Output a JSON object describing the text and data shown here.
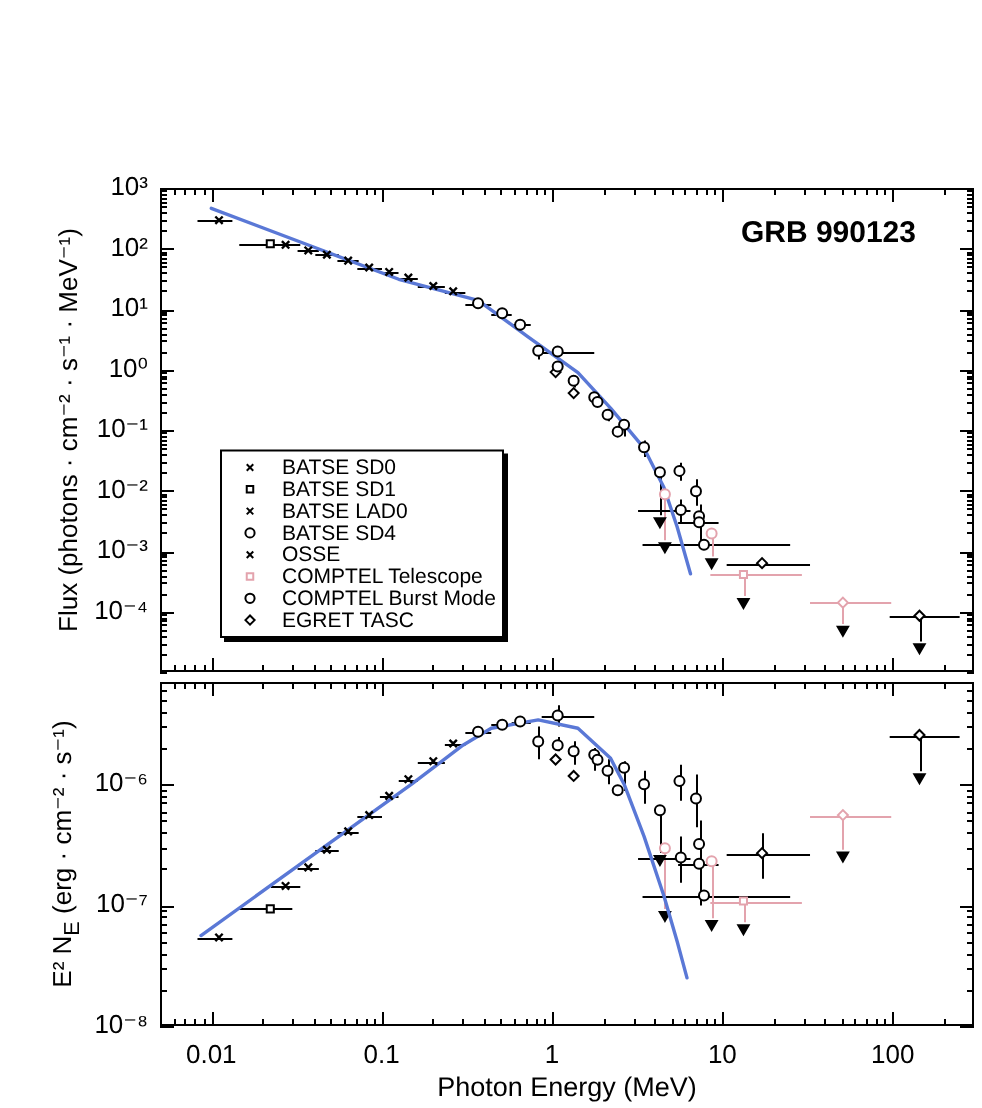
{
  "chart_data": [
    {
      "type": "scatter",
      "title": "GRB 990123",
      "ylabel": "Flux  (photons · cm⁻² · s⁻¹ · MeV⁻¹)",
      "log": "xy",
      "xlim": [
        0.005,
        300
      ],
      "ylim": [
        1e-05,
        1000
      ],
      "tick_labels": "y",
      "legend": "bottom left",
      "xticks": [
        {
          "value": 0.005,
          "label": null
        },
        {
          "value": 0.006,
          "label": null
        },
        {
          "value": 0.007,
          "label": null
        },
        {
          "value": 0.008,
          "label": null
        },
        {
          "value": 0.009,
          "label": null
        },
        0.01,
        {
          "value": 0.02,
          "label": null
        },
        {
          "value": 0.03,
          "label": null
        },
        {
          "value": 0.04,
          "label": null
        },
        {
          "value": 0.05,
          "label": null
        },
        {
          "value": 0.06,
          "label": null
        },
        {
          "value": 0.07,
          "label": null
        },
        {
          "value": 0.08,
          "label": null
        },
        {
          "value": 0.09,
          "label": null
        },
        0.1,
        {
          "value": 0.2,
          "label": null
        },
        {
          "value": 0.3,
          "label": null
        },
        {
          "value": 0.4,
          "label": null
        },
        {
          "value": 0.5,
          "label": null
        },
        {
          "value": 0.6,
          "label": null
        },
        {
          "value": 0.7,
          "label": null
        },
        {
          "value": 0.8,
          "label": null
        },
        {
          "value": 0.9,
          "label": null
        },
        1,
        {
          "value": 2,
          "label": null
        },
        {
          "value": 3,
          "label": null
        },
        {
          "value": 4,
          "label": null
        },
        {
          "value": 5,
          "label": null
        },
        {
          "value": 6,
          "label": null
        },
        {
          "value": 7,
          "label": null
        },
        {
          "value": 8,
          "label": null
        },
        {
          "value": 9,
          "label": null
        },
        10,
        {
          "value": 20,
          "label": null
        },
        {
          "value": 30,
          "label": null
        },
        {
          "value": 40,
          "label": null
        },
        {
          "value": 50,
          "label": null
        },
        {
          "value": 60,
          "label": null
        },
        {
          "value": 70,
          "label": null
        },
        {
          "value": 80,
          "label": null
        },
        {
          "value": 90,
          "label": null
        },
        100,
        {
          "value": 200,
          "label": null
        }
      ],
      "yticks": [
        {
          "value": 1e-05,
          "label": null
        },
        {
          "value": 2e-05,
          "label": null
        },
        {
          "value": 3e-05,
          "label": null
        },
        {
          "value": 4e-05,
          "label": null
        },
        {
          "value": 5e-05,
          "label": null
        },
        {
          "value": 6e-05,
          "label": null
        },
        {
          "value": 7e-05,
          "label": null
        },
        {
          "value": 8e-05,
          "label": null
        },
        {
          "value": 9e-05,
          "label": null
        },
        {
          "value": 0.0001,
          "label": "10⁻⁴"
        },
        {
          "value": 0.0002,
          "label": null
        },
        {
          "value": 0.0003,
          "label": null
        },
        {
          "value": 0.0004,
          "label": null
        },
        {
          "value": 0.0005,
          "label": null
        },
        {
          "value": 0.0006,
          "label": null
        },
        {
          "value": 0.0007,
          "label": null
        },
        {
          "value": 0.0008,
          "label": null
        },
        {
          "value": 0.0009,
          "label": null
        },
        {
          "value": 0.001,
          "label": "10⁻³"
        },
        {
          "value": 0.002,
          "label": null
        },
        {
          "value": 0.003,
          "label": null
        },
        {
          "value": 0.004,
          "label": null
        },
        {
          "value": 0.005,
          "label": null
        },
        {
          "value": 0.006,
          "label": null
        },
        {
          "value": 0.007,
          "label": null
        },
        {
          "value": 0.008,
          "label": null
        },
        {
          "value": 0.009,
          "label": null
        },
        {
          "value": 0.01,
          "label": "10⁻²"
        },
        {
          "value": 0.02,
          "label": null
        },
        {
          "value": 0.03,
          "label": null
        },
        {
          "value": 0.04,
          "label": null
        },
        {
          "value": 0.05,
          "label": null
        },
        {
          "value": 0.06,
          "label": null
        },
        {
          "value": 0.07,
          "label": null
        },
        {
          "value": 0.08,
          "label": null
        },
        {
          "value": 0.09,
          "label": null
        },
        {
          "value": 0.1,
          "label": "10⁻¹"
        },
        {
          "value": 0.2,
          "label": null
        },
        {
          "value": 0.3,
          "label": null
        },
        {
          "value": 0.4,
          "label": null
        },
        {
          "value": 0.5,
          "label": null
        },
        {
          "value": 0.6,
          "label": null
        },
        {
          "value": 0.7,
          "label": null
        },
        {
          "value": 0.8,
          "label": null
        },
        {
          "value": 0.9,
          "label": null
        },
        {
          "value": 1,
          "label": "10⁰"
        },
        {
          "value": 2,
          "label": null
        },
        {
          "value": 3,
          "label": null
        },
        {
          "value": 4,
          "label": null
        },
        {
          "value": 5,
          "label": null
        },
        {
          "value": 6,
          "label": null
        },
        {
          "value": 7,
          "label": null
        },
        {
          "value": 8,
          "label": null
        },
        {
          "value": 9,
          "label": null
        },
        {
          "value": 10,
          "label": "10¹"
        },
        {
          "value": 20,
          "label": null
        },
        {
          "value": 30,
          "label": null
        },
        {
          "value": 40,
          "label": null
        },
        {
          "value": 50,
          "label": null
        },
        {
          "value": 60,
          "label": null
        },
        {
          "value": 70,
          "label": null
        },
        {
          "value": 80,
          "label": null
        },
        {
          "value": 90,
          "label": null
        },
        {
          "value": 100,
          "label": "10²"
        },
        {
          "value": 200,
          "label": null
        },
        {
          "value": 300,
          "label": null
        },
        {
          "value": 400,
          "label": null
        },
        {
          "value": 500,
          "label": null
        },
        {
          "value": 600,
          "label": null
        },
        {
          "value": 700,
          "label": null
        },
        {
          "value": 800,
          "label": null
        },
        {
          "value": 900,
          "label": null
        },
        {
          "value": 1000,
          "label": "10³"
        }
      ],
      "series": [
        {
          "name": "BATSE SD0",
          "marker": "cross",
          "color": "#000000",
          "x": [
            0.0111
          ],
          "values": [
            294
          ],
          "xerrors": [
            [
              0.0083,
              0.0133
            ]
          ]
        },
        {
          "name": "BATSE SD1",
          "marker": "square",
          "color": "#000000",
          "x": [
            0.0222
          ],
          "values": [
            120
          ],
          "xerrors": [
            [
              0.0146,
              0.0299
            ]
          ]
        },
        {
          "name": "BATSE LAD0",
          "marker": "cross",
          "color": "#000000",
          "x": [
            0.0273,
            0.0371,
            0.0477,
            0.0636,
            0.0845,
            0.1107,
            0.1435,
            0.201,
            0.263
          ],
          "values": [
            115,
            93,
            79,
            63,
            48.5,
            41,
            33,
            24,
            19.6
          ],
          "xerrors": [
            [
              0.0224,
              0.0333
            ],
            [
              0.0321,
              0.0428
            ],
            [
              0.0408,
              0.056
            ],
            [
              0.055,
              0.0733
            ],
            [
              0.072,
              0.1005
            ],
            [
              0.0977,
              0.1256
            ],
            [
              0.126,
              0.163
            ],
            [
              0.163,
              0.235
            ],
            [
              0.235,
              0.31
            ]
          ]
        },
        {
          "name": "BATSE SD4",
          "marker": "circle",
          "color": "#000000",
          "x": [
            0.368,
            0.51,
            0.65,
            0.83,
            1.08,
            1.85,
            2.43,
            4.3,
            7.3,
            7.8
          ],
          "values": [
            12.5,
            8.5,
            5.5,
            2.04,
            1.98,
            0.29,
            0.094,
            0.02,
            0.003,
            0.00127
          ],
          "xerrors": [
            [
              0.31,
              0.44
            ],
            [
              0.44,
              0.58
            ],
            [
              0.58,
              0.75
            ],
            null,
            [
              0.87,
              1.77
            ],
            null,
            null,
            null,
            [
              5.5,
              9.5
            ],
            [
              3.4,
              25
            ]
          ],
          "errors": [
            null,
            null,
            null,
            [
              1.46,
              2.72
            ],
            [
              1.61,
              2.4
            ],
            null,
            null,
            [
              0.0039,
              0.02
            ],
            [
              0.00116,
              0.00586
            ],
            null
          ]
        },
        {
          "name": "OSSE",
          "marker": "cross",
          "color": "#000000"
        },
        {
          "name": "COMPTEL Telescope",
          "marker": "square",
          "color": "#e3a3ad",
          "x": [
            13.3
          ],
          "values": [
            0.00041
          ],
          "xerrors": [
            [
              8.5,
              29.3
            ]
          ],
          "errors": [
            [
              0.00018,
              0.00041
            ]
          ]
        },
        {
          "name": "COMPTEL Burst Mode",
          "marker": "circle",
          "color": "#000000",
          "x": [
            1.08,
            1.34,
            1.77,
            2.12,
            2.65,
            3.47,
            4.6,
            5.6,
            5.7,
            7.0,
            7.3,
            8.65
          ],
          "values": [
            1.12,
            0.65,
            0.349,
            0.179,
            0.122,
            0.0518,
            0.0087,
            0.0211,
            0.00476,
            0.00968,
            0.00375,
            0.00195
          ],
          "xerrors": [
            null,
            null,
            null,
            null,
            null,
            null,
            null,
            null,
            [
              3.2,
              6.5
            ],
            null,
            null,
            null
          ],
          "errors": [
            [
              1.0,
              1.32
            ],
            [
              0.504,
              0.786
            ],
            [
              0.257,
              0.397
            ],
            [
              0.139,
              0.224
            ],
            [
              0.078,
              0.138
            ],
            [
              0.0358,
              0.0669
            ],
            [
              0.0015,
              0.0087
            ],
            [
              0.01453,
              0.02886
            ],
            [
              0.00294,
              0.00711
            ],
            [
              0.0056,
              0.01529
            ],
            [
              0.00199,
              0.00551
            ],
            [
              0.00081,
              0.00195
            ]
          ],
          "colors": [
            "#000000",
            "#000000",
            "#000000",
            "#000000",
            "#000000",
            "#000000",
            "#e3a3ad",
            "#000000",
            "#000000",
            "#000000",
            "#000000",
            "#e3a3ad"
          ]
        },
        {
          "name": "EGRET TASC",
          "marker": "diamond",
          "color": "#000000",
          "x": [
            1.05,
            1.34,
            17.1,
            51,
            143.6
          ],
          "values": [
            0.906,
            0.407,
            0.00063,
            0.00014,
            8.5e-05
          ],
          "xerrors": [
            null,
            null,
            [
              10.6,
              32.7
            ],
            [
              32.7,
              98
            ],
            [
              96,
              247
            ]
          ],
          "errors": [
            null,
            null,
            null,
            [
              6.2e-05,
              0.00014
            ],
            [
              3.2e-05,
              8.5e-05
            ]
          ],
          "colors": [
            "#000000",
            "#000000",
            "#000000",
            "#e3a3ad",
            "#000000"
          ]
        },
        {
          "type": "line",
          "marker": "none",
          "color": "#5a78d6",
          "x": [
            0.01,
            0.0428,
            0.126,
            0.368,
            0.72,
            1.42,
            2.22,
            3.47,
            4.54,
            5.43,
            6.5
          ],
          "values": [
            461,
            98,
            31,
            13.9,
            3.5,
            0.89,
            0.225,
            0.05,
            0.0112,
            0.0025,
            0.00042
          ]
        },
        {
          "marker": "triangle",
          "color": "#000000",
          "x": [
            4.3,
            4.6,
            8.65,
            13.3,
            51,
            143.6
          ],
          "values": [
            0.0031,
            0.0012,
            0.00065,
            0.000144,
            5e-05,
            2.56e-05
          ]
        }
      ]
    },
    {
      "type": "scatter",
      "xlabel": "Photon Energy (MeV)",
      "ylabel": "E² N$_{E}$  (erg · cm⁻² · s⁻¹)",
      "log": "xy",
      "xlim": [
        0.005,
        300
      ],
      "ylim": [
        1e-08,
        7e-06
      ],
      "xticks": [
        {
          "value": 0.005,
          "label": null
        },
        {
          "value": 0.006,
          "label": null
        },
        {
          "value": 0.007,
          "label": null
        },
        {
          "value": 0.008,
          "label": null
        },
        {
          "value": 0.009,
          "label": null
        },
        0.01,
        {
          "value": 0.02,
          "label": null
        },
        {
          "value": 0.03,
          "label": null
        },
        {
          "value": 0.04,
          "label": null
        },
        {
          "value": 0.05,
          "label": null
        },
        {
          "value": 0.06,
          "label": null
        },
        {
          "value": 0.07,
          "label": null
        },
        {
          "value": 0.08,
          "label": null
        },
        {
          "value": 0.09,
          "label": null
        },
        0.1,
        {
          "value": 0.2,
          "label": null
        },
        {
          "value": 0.3,
          "label": null
        },
        {
          "value": 0.4,
          "label": null
        },
        {
          "value": 0.5,
          "label": null
        },
        {
          "value": 0.6,
          "label": null
        },
        {
          "value": 0.7,
          "label": null
        },
        {
          "value": 0.8,
          "label": null
        },
        {
          "value": 0.9,
          "label": null
        },
        1,
        {
          "value": 2,
          "label": null
        },
        {
          "value": 3,
          "label": null
        },
        {
          "value": 4,
          "label": null
        },
        {
          "value": 5,
          "label": null
        },
        {
          "value": 6,
          "label": null
        },
        {
          "value": 7,
          "label": null
        },
        {
          "value": 8,
          "label": null
        },
        {
          "value": 9,
          "label": null
        },
        10,
        {
          "value": 20,
          "label": null
        },
        {
          "value": 30,
          "label": null
        },
        {
          "value": 40,
          "label": null
        },
        {
          "value": 50,
          "label": null
        },
        {
          "value": 60,
          "label": null
        },
        {
          "value": 70,
          "label": null
        },
        {
          "value": 80,
          "label": null
        },
        {
          "value": 90,
          "label": null
        },
        100,
        {
          "value": 200,
          "label": null
        }
      ],
      "yticks": [
        {
          "value": 1e-08,
          "label": "10⁻⁸"
        },
        {
          "value": 2e-08,
          "label": null
        },
        {
          "value": 3e-08,
          "label": null
        },
        {
          "value": 4e-08,
          "label": null
        },
        {
          "value": 5e-08,
          "label": null
        },
        {
          "value": 6e-08,
          "label": null
        },
        {
          "value": 7e-08,
          "label": null
        },
        {
          "value": 8e-08,
          "label": null
        },
        {
          "value": 9e-08,
          "label": null
        },
        {
          "value": 1e-07,
          "label": "10⁻⁷"
        },
        {
          "value": 2e-07,
          "label": null
        },
        {
          "value": 3e-07,
          "label": null
        },
        {
          "value": 4e-07,
          "label": null
        },
        {
          "value": 5e-07,
          "label": null
        },
        {
          "value": 6e-07,
          "label": null
        },
        {
          "value": 7e-07,
          "label": null
        },
        {
          "value": 8e-07,
          "label": null
        },
        {
          "value": 9e-07,
          "label": null
        },
        {
          "value": 1e-06,
          "label": "10⁻⁶"
        },
        {
          "value": 2e-06,
          "label": null
        },
        {
          "value": 3e-06,
          "label": null
        },
        {
          "value": 4e-06,
          "label": null
        },
        {
          "value": 5e-06,
          "label": null
        },
        {
          "value": 6e-06,
          "label": null
        }
      ],
      "series": [
        {
          "marker": "cross",
          "color": "#000000",
          "x": [
            0.0111
          ],
          "values": [
            5.4e-08
          ],
          "xerrors": [
            [
              0.0083,
              0.0133
            ]
          ]
        },
        {
          "marker": "square",
          "color": "#000000",
          "x": [
            0.0222
          ],
          "values": [
            9.3e-08
          ],
          "xerrors": [
            [
              0.0146,
              0.0299
            ]
          ]
        },
        {
          "marker": "cross",
          "color": "#000000",
          "x": [
            0.0273,
            0.0371,
            0.0477,
            0.0636,
            0.0845,
            0.1107,
            0.1435,
            0.201,
            0.263
          ],
          "values": [
            1.44e-07,
            2.05e-07,
            2.87e-07,
            4.07e-07,
            5.55e-07,
            8e-07,
            1.1e-06,
            1.55e-06,
            2.17e-06
          ],
          "xerrors": [
            [
              0.0224,
              0.0333
            ],
            [
              0.0321,
              0.0428
            ],
            [
              0.0408,
              0.056
            ],
            [
              0.055,
              0.0733
            ],
            [
              0.072,
              0.1005
            ],
            [
              0.0977,
              0.1256
            ],
            [
              0.126,
              0.163
            ],
            [
              0.163,
              0.235
            ],
            [
              0.235,
              0.31
            ]
          ]
        },
        {
          "marker": "circle",
          "color": "#000000",
          "x": [
            0.368,
            0.51,
            0.65,
            0.83,
            1.08,
            1.85,
            2.43,
            4.3,
            7.3,
            7.8
          ],
          "values": [
            2.72e-06,
            3.1e-06,
            3.3e-06,
            2.25e-06,
            3.7e-06,
            1.59e-06,
            8.9e-07,
            6.1e-07,
            2.2e-07,
            1.2e-07
          ],
          "xerrors": [
            [
              0.31,
              0.44
            ],
            [
              0.44,
              0.58
            ],
            [
              0.58,
              0.75
            ],
            null,
            [
              0.87,
              1.77
            ],
            null,
            null,
            null,
            [
              5.5,
              9.5
            ],
            [
              3.4,
              25
            ]
          ],
          "errors": [
            null,
            null,
            null,
            [
              1.61e-06,
              3e-06
            ],
            [
              3e-06,
              4.49e-06
            ],
            null,
            null,
            [
              2.7e-07,
              6.1e-07
            ],
            [
              9.9e-08,
              5e-07
            ],
            null
          ]
        },
        {
          "marker": "square",
          "color": "#e3a3ad",
          "x": [
            13.3
          ],
          "values": [
            1.08e-07
          ],
          "xerrors": [
            [
              8.5,
              29.3
            ]
          ],
          "errors": [
            [
              7.2e-08,
              1.08e-07
            ]
          ]
        },
        {
          "marker": "circle",
          "color": "#000000",
          "x": [
            1.08,
            1.34,
            1.77,
            2.12,
            2.65,
            3.47,
            4.6,
            5.6,
            5.7,
            7.0,
            7.3,
            8.65
          ],
          "values": [
            2.1e-06,
            1.87e-06,
            1.75e-06,
            1.29e-06,
            1.37e-06,
            1e-06,
            2.95e-07,
            1.06e-06,
            2.48e-07,
            7.6e-07,
            3.2e-07,
            2.3e-07
          ],
          "xerrors": [
            null,
            null,
            null,
            null,
            null,
            null,
            null,
            null,
            [
              3.2,
              6.5
            ],
            null,
            null,
            null
          ],
          "errors": [
            [
              1.87e-06,
              2.46e-06
            ],
            [
              1.45e-06,
              2.26e-06
            ],
            [
              1.29e-06,
              1.99e-06
            ],
            [
              1e-06,
              1.61e-06
            ],
            [
              8.8e-07,
              1.55e-06
            ],
            [
              6.9e-07,
              1.29e-06
            ],
            [
              9.3e-08,
              2.95e-07
            ],
            [
              7.3e-07,
              1.45e-06
            ],
            [
              1.53e-07,
              3.7e-07
            ],
            [
              4.4e-07,
              1.2e-06
            ],
            [
              1.7e-07,
              4.7e-07
            ],
            [
              7.8e-08,
              2.3e-07
            ]
          ],
          "colors": [
            "#000000",
            "#000000",
            "#000000",
            "#000000",
            "#000000",
            "#000000",
            "#e3a3ad",
            "#000000",
            "#000000",
            "#000000",
            "#000000",
            "#e3a3ad"
          ]
        },
        {
          "marker": "diamond",
          "color": "#000000",
          "x": [
            1.05,
            1.34,
            17.1,
            51,
            143.6
          ],
          "values": [
            1.6e-06,
            1.17e-06,
            2.69e-07,
            5.55e-07,
            2.55e-06
          ],
          "xerrors": [
            null,
            null,
            [
              10.6,
              32.7
            ],
            [
              32.7,
              98
            ],
            [
              96,
              247
            ]
          ],
          "errors": [
            null,
            null,
            [
              1.65e-07,
              3.92e-07
            ],
            [
              2.87e-07,
              5.55e-07
            ],
            [
              1.28e-06,
              2.55e-06
            ]
          ],
          "colors": [
            "#000000",
            "#000000",
            "#000000",
            "#e3a3ad",
            "#000000"
          ]
        },
        {
          "type": "line",
          "marker": "none",
          "color": "#5a78d6",
          "x": [
            0.0087,
            0.15,
            0.3,
            0.44,
            0.83,
            1.42,
            2.2,
            2.65,
            3.47,
            4.54,
            5.43,
            6.2
          ],
          "values": [
            5.6e-08,
            1e-06,
            2.1e-06,
            2.9e-06,
            3.4e-06,
            2.9e-06,
            1.65e-06,
            1e-06,
            3.7e-07,
            1.19e-07,
            5e-08,
            2.5e-08
          ]
        },
        {
          "marker": "triangle",
          "color": "#000000",
          "x": [
            4.3,
            4.6,
            8.65,
            13.3,
            51,
            143.6
          ],
          "values": [
            2.41e-07,
            8.3e-08,
            6.97e-08,
            6.44e-08,
            2.57e-07,
            1.14e-06
          ]
        }
      ]
    }
  ]
}
